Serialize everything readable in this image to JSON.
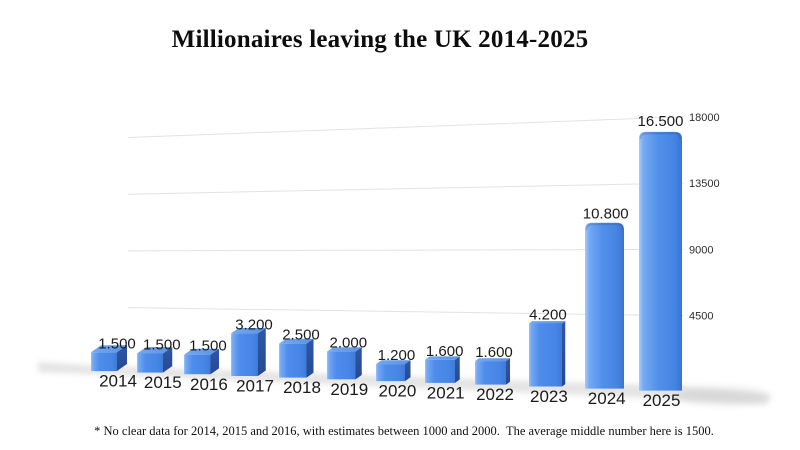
{
  "chart_data": {
    "type": "bar",
    "style": "3d-perspective-bars",
    "title": "Millionaires leaving the UK 2014-2025",
    "categories": [
      "2014",
      "2015",
      "2016",
      "2017",
      "2018",
      "2019",
      "2020",
      "2021",
      "2022",
      "2023",
      "2024",
      "2025"
    ],
    "values": [
      1500,
      1500,
      1500,
      3200,
      2500,
      2000,
      1200,
      1600,
      1600,
      4200,
      10800,
      16500
    ],
    "value_labels": [
      "1.500",
      "1.500",
      "1.500",
      "3.200",
      "2.500",
      "2.000",
      "1.200",
      "1.600",
      "1.600",
      "4.200",
      "10.800",
      "16.500"
    ],
    "xlabel": "",
    "ylabel": "",
    "y_axis": {
      "side": "right",
      "ticks": [
        4500,
        9000,
        13500,
        18000
      ],
      "range": [
        0,
        18000
      ]
    },
    "grid": true,
    "legend": "none",
    "footnote": "* No clear data for 2014, 2015 and 2016, with estimates between 1000 and 2000.  The average middle number here is 1500.",
    "colors": {
      "background": "#ffffff",
      "bar_front": "#4f8ceb",
      "bar_front_highlight": "#9dc3f8",
      "bar_front_deep": "#3f7ad9",
      "bar_top_light": "#74a9f0",
      "bar_top_deep": "#5b93e4",
      "bar_side": "#2e57a8",
      "bar_side_deep": "#264992",
      "gridline": "#e2e2e2",
      "label_text": "#1b1b1b",
      "axis_text": "#2e2e2e",
      "shadow": "#c9c9c9"
    }
  }
}
